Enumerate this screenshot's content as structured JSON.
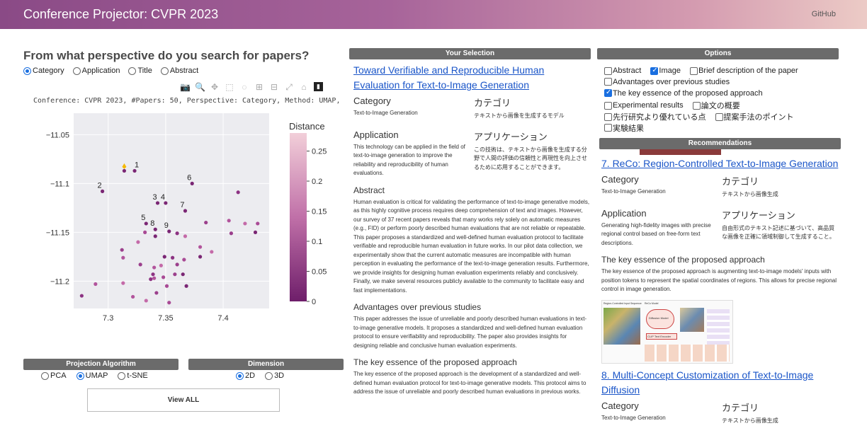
{
  "app": {
    "title": "Conference Projector: CVPR 2023",
    "github": "GitHub"
  },
  "search": {
    "question": "From what perspective do you search for papers?",
    "perspectives": [
      {
        "label": "Category",
        "selected": true
      },
      {
        "label": "Application",
        "selected": false
      },
      {
        "label": "Title",
        "selected": false
      },
      {
        "label": "Abstract",
        "selected": false
      }
    ]
  },
  "plot": {
    "info": "Conference: CVPR 2023, #Papers: 50, Perspective: Category, Method: UMAP, Mod",
    "colorbar_title": "Distance"
  },
  "chart_data": {
    "type": "scatter",
    "xlim": [
      7.27,
      7.44
    ],
    "ylim": [
      -11.228,
      -11.028
    ],
    "x_ticks": [
      "7.3",
      "7.35",
      "7.4"
    ],
    "x_tick_values": [
      7.3,
      7.35,
      7.4
    ],
    "y_ticks": [
      "−11.05",
      "−11.1",
      "−11.15",
      "−11.2"
    ],
    "y_tick_values": [
      -11.05,
      -11.1,
      -11.15,
      -11.2
    ],
    "colorbar_ticks": [
      "0.25",
      "0.2",
      "0.15",
      "0.1",
      "0.05",
      "0"
    ],
    "colorbar_values": [
      0.25,
      0.2,
      0.15,
      0.1,
      0.05,
      0
    ],
    "selected_point": {
      "x": 7.314,
      "y": -11.083
    },
    "labeled_points": [
      {
        "label": "1",
        "x": 7.323,
        "y": -11.087
      },
      {
        "label": "2",
        "x": 7.295,
        "y": -11.108
      },
      {
        "label": "3",
        "x": 7.343,
        "y": -11.12
      },
      {
        "label": "4",
        "x": 7.35,
        "y": -11.12
      },
      {
        "label": "5",
        "x": 7.333,
        "y": -11.141
      },
      {
        "label": "6",
        "x": 7.373,
        "y": -11.1
      },
      {
        "label": "7",
        "x": 7.367,
        "y": -11.128
      },
      {
        "label": "8",
        "x": 7.341,
        "y": -11.147
      },
      {
        "label": "9",
        "x": 7.353,
        "y": -11.149
      }
    ],
    "points": [
      {
        "x": 7.314,
        "y": -11.087
      },
      {
        "x": 7.385,
        "y": -11.14
      },
      {
        "x": 7.405,
        "y": -11.138
      },
      {
        "x": 7.419,
        "y": -11.141
      },
      {
        "x": 7.413,
        "y": -11.109
      },
      {
        "x": 7.43,
        "y": -11.141
      },
      {
        "x": 7.428,
        "y": -11.15
      },
      {
        "x": 7.407,
        "y": -11.151
      },
      {
        "x": 7.38,
        "y": -11.165
      },
      {
        "x": 7.367,
        "y": -11.154
      },
      {
        "x": 7.36,
        "y": -11.151
      },
      {
        "x": 7.332,
        "y": -11.15
      },
      {
        "x": 7.341,
        "y": -11.154
      },
      {
        "x": 7.312,
        "y": -11.168
      },
      {
        "x": 7.313,
        "y": -11.176
      },
      {
        "x": 7.326,
        "y": -11.16
      },
      {
        "x": 7.356,
        "y": -11.176
      },
      {
        "x": 7.366,
        "y": -11.178
      },
      {
        "x": 7.349,
        "y": -11.175
      },
      {
        "x": 7.328,
        "y": -11.183
      },
      {
        "x": 7.34,
        "y": -11.186
      },
      {
        "x": 7.346,
        "y": -11.184
      },
      {
        "x": 7.339,
        "y": -11.193
      },
      {
        "x": 7.348,
        "y": -11.196
      },
      {
        "x": 7.365,
        "y": -11.193
      },
      {
        "x": 7.358,
        "y": -11.193
      },
      {
        "x": 7.289,
        "y": -11.203
      },
      {
        "x": 7.313,
        "y": -11.202
      },
      {
        "x": 7.337,
        "y": -11.198
      },
      {
        "x": 7.351,
        "y": -11.205
      },
      {
        "x": 7.368,
        "y": -11.205
      },
      {
        "x": 7.342,
        "y": -11.212
      },
      {
        "x": 7.3215,
        "y": -11.216
      },
      {
        "x": 7.333,
        "y": -11.22
      },
      {
        "x": 7.277,
        "y": -11.215
      },
      {
        "x": 7.353,
        "y": -11.222
      },
      {
        "x": 7.38,
        "y": -11.175
      },
      {
        "x": 7.36,
        "y": -11.183
      },
      {
        "x": 7.34,
        "y": -11.197
      },
      {
        "x": 7.39,
        "y": -11.17
      }
    ]
  },
  "projection": {
    "header": "Projection Algorithm",
    "options": [
      {
        "label": "PCA",
        "selected": false
      },
      {
        "label": "UMAP",
        "selected": true
      },
      {
        "label": "t-SNE",
        "selected": false
      }
    ]
  },
  "dimension": {
    "header": "Dimension",
    "options": [
      {
        "label": "2D",
        "selected": true
      },
      {
        "label": "3D",
        "selected": false
      }
    ]
  },
  "view_all": "View ALL",
  "selection": {
    "header": "Your Selection",
    "title": "Toward Verifiable and Reproducible Human Evaluation for Text-to-Image Generation",
    "category_en_h": "Category",
    "category_jp_h": "カテゴリ",
    "category_en": "Text-to-Image Generation",
    "category_jp": "テキストから画像を生成するモデル",
    "application_en_h": "Application",
    "application_jp_h": "アプリケーション",
    "application_en": "This technology can be applied in the field of text-to-image generation to improve the reliability and reproducibility of human evaluations.",
    "application_jp": "この技術は、テキストから画像を生成する分野で人間の評価の信頼性と再現性を向上させるために応用することができます。",
    "abstract_h": "Abstract",
    "abstract": "Human evaluation is critical for validating the performance of text-to-image generative models, as this highly cognitive process requires deep comprehension of text and images. However, our survey of 37 recent papers reveals that many works rely solely on automatic measures (e.g., FID) or perform poorly described human evaluations that are not reliable or repeatable. This paper proposes a standardized and well-defined human evaluation protocol to facilitate verifiable and reproducible human evaluation in future works. In our pilot data collection, we experimentally show that the current automatic measures are incompatible with human perception in evaluating the performance of the text-to-image generation results. Furthermore, we provide insights for designing human evaluation experiments reliably and conclusively. Finally, we make several resources publicly available to the community to facilitate easy and fast implementations.",
    "advantages_h": "Advantages over previous studies",
    "advantages": "This paper addresses the issue of unreliable and poorly described human evaluations in text-to-image generative models. It proposes a standardized and well-defined human evaluation protocol to ensure verifiability and reproducibility. The paper also provides insights for designing reliable and conclusive human evaluation experiments.",
    "essence_h": "The key essence of the proposed approach",
    "essence": "The key essence of the proposed approach is the development of a standardized and well-defined human evaluation protocol for text-to-image generative models. This protocol aims to address the issue of unreliable and poorly described human evaluations in previous works."
  },
  "options": {
    "header": "Options",
    "rows": [
      [
        {
          "label": "Abstract",
          "checked": false
        },
        {
          "label": "Image",
          "checked": true
        },
        {
          "label": "Brief description of the paper",
          "checked": false
        }
      ],
      [
        {
          "label": "Advantages over previous studies",
          "checked": false
        }
      ],
      [
        {
          "label": "The key essence of the proposed approach",
          "checked": true
        }
      ],
      [
        {
          "label": "Experimental results",
          "checked": false
        },
        {
          "label": "論文の概要",
          "checked": false
        }
      ],
      [
        {
          "label": "先行研究より優れている点",
          "checked": false
        },
        {
          "label": "提案手法のポイント",
          "checked": false
        }
      ],
      [
        {
          "label": "実験結果",
          "checked": false
        }
      ]
    ]
  },
  "recommendations": {
    "header": "Recommendations",
    "items": [
      {
        "title": "7. ReCo: Region-Controlled Text-to-Image Generation",
        "category_en_h": "Category",
        "category_jp_h": "カテゴリ",
        "category_en": "Text-to-Image Generation",
        "category_jp": "テキストから画像生成",
        "application_en_h": "Application",
        "application_jp_h": "アプリケーション",
        "application_en": "Generating high-fidelity images with precise regional control based on free-form text descriptions.",
        "application_jp": "自由形式のテキスト記述に基づいて、高品質な画像を正確に領域制御して生成すること。",
        "essence_h": "The key essence of the proposed approach",
        "essence": "The key essence of the proposed approach is augmenting text-to-image models' inputs with position tokens to represent the spatial coordinates of regions. This allows for precise regional control in image generation.",
        "figure_labels": [
          "Region-Controlled Input Sequence",
          "ReCo Model",
          "Diffusion Model",
          "CLIP Text Encoder"
        ]
      },
      {
        "title": "8. Multi-Concept Customization of Text-to-Image Diffusion",
        "category_en_h": "Category",
        "category_jp_h": "カテゴリ",
        "category_en": "Text-to-Image Generation",
        "category_jp": "テキストから画像生成"
      }
    ]
  }
}
